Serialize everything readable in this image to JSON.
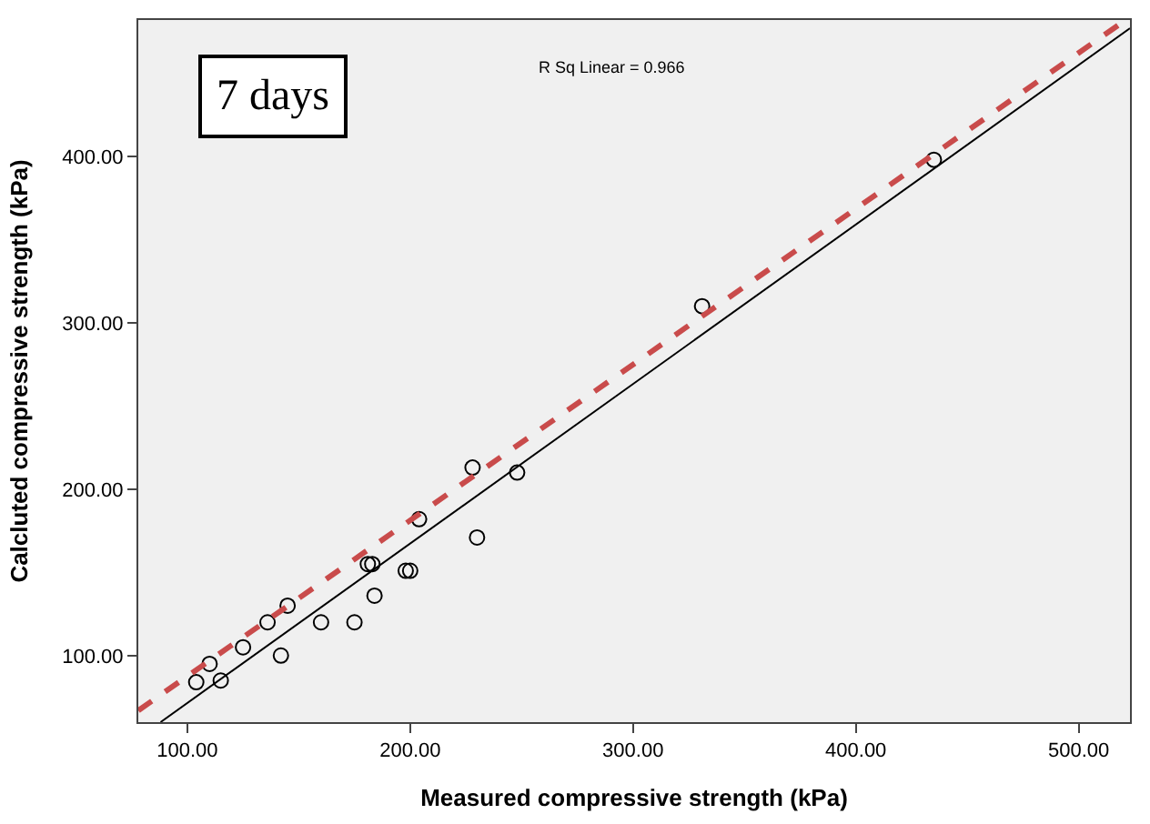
{
  "chart_data": {
    "type": "scatter",
    "xlabel": "Measured compressive strength (kPa)",
    "ylabel": "Calcluted compressive strength (kPa)",
    "xlim": [
      78,
      523
    ],
    "ylim": [
      60,
      482
    ],
    "xticks": [
      {
        "value": 100,
        "label": "100.00"
      },
      {
        "value": 200,
        "label": "200.00"
      },
      {
        "value": 300,
        "label": "300.00"
      },
      {
        "value": 400,
        "label": "400.00"
      },
      {
        "value": 500,
        "label": "500.00"
      }
    ],
    "yticks": [
      {
        "value": 100,
        "label": "100.00"
      },
      {
        "value": 200,
        "label": "200.00"
      },
      {
        "value": 300,
        "label": "300.00"
      },
      {
        "value": 400,
        "label": "400.00"
      }
    ],
    "grid": false,
    "series": [
      {
        "marker": "circle",
        "color": "#000000",
        "x": [
          104,
          110,
          115,
          125,
          136,
          145,
          142,
          160,
          175,
          181,
          183,
          184,
          198,
          200,
          204,
          228,
          230,
          248,
          331,
          435
        ],
        "values": [
          84,
          95,
          85,
          105,
          120,
          130,
          100,
          120,
          120,
          155,
          155,
          136,
          151,
          151,
          182,
          213,
          171,
          210,
          310,
          398
        ]
      },
      {
        "type": "line",
        "marker": "none",
        "line_style": "solid",
        "color": "#000000",
        "x": [
          88,
          523
        ],
        "values": [
          60,
          477
        ]
      },
      {
        "type": "line",
        "marker": "none",
        "line_style": "dashed",
        "color": "#c94b4b",
        "x": [
          78,
          520
        ],
        "values": [
          67,
          481
        ]
      }
    ],
    "annotations": [
      "7 days",
      "R Sq Linear = 0.966"
    ]
  }
}
